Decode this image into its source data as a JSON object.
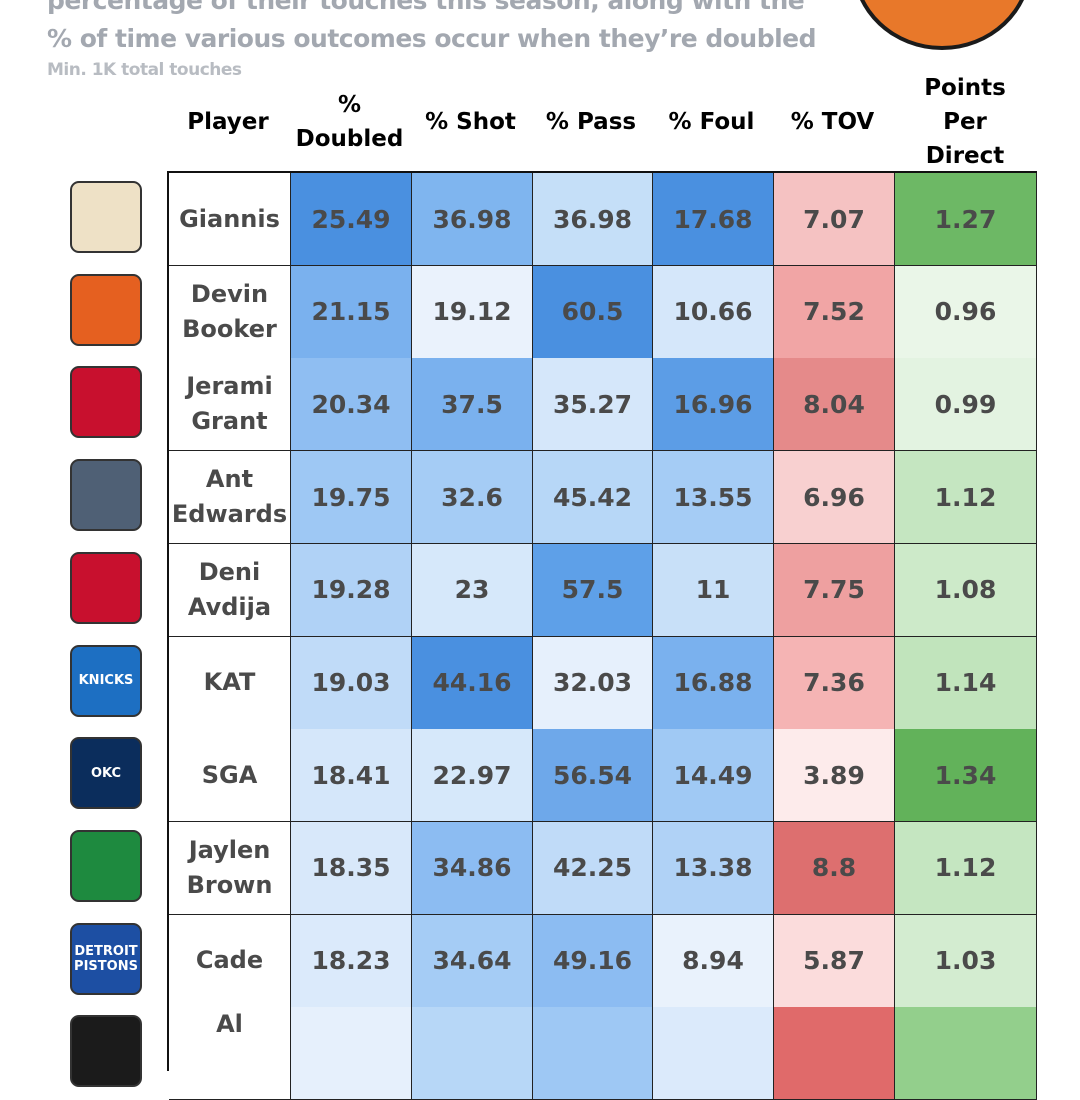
{
  "header": {
    "subtitle_line1": "percentage of their touches this season, along with the",
    "subtitle_line2": "% of time various outcomes occur when they’re doubled",
    "note": "Min. 1K total touches"
  },
  "columns": [
    "Player",
    "% Doubled",
    "% Shot",
    "% Pass",
    "% Foul",
    "% TOV",
    "Points Per Direct"
  ],
  "chart_data": {
    "type": "table",
    "columns": [
      "Player",
      "% Doubled",
      "% Shot",
      "% Pass",
      "% Foul",
      "% TOV",
      "Points Per Direct"
    ],
    "rows": [
      {
        "team": "bucks",
        "logo_color": "#eee1c6",
        "player": "Giannis",
        "values": [
          "25.49",
          "36.98",
          "36.98",
          "17.68",
          "7.07",
          "1.27"
        ],
        "colors": [
          "#4a90e0",
          "#7fb5ef",
          "#c5dff8",
          "#4a90e0",
          "#f5c2c2",
          "#6db865"
        ]
      },
      {
        "team": "suns",
        "logo_color": "#e56020",
        "player": "Devin Booker",
        "values": [
          "21.15",
          "19.12",
          "60.5",
          "10.66",
          "7.52",
          "0.96"
        ],
        "colors": [
          "#7ab1ee",
          "#eaf2fc",
          "#4a90e0",
          "#d5e7fa",
          "#f1a5a5",
          "#eaf6e8"
        ]
      },
      {
        "team": "trail-blazers",
        "logo_color": "#c8102e",
        "player": "Jerami Grant",
        "values": [
          "20.34",
          "37.5",
          "35.27",
          "16.96",
          "8.04",
          "0.99"
        ],
        "colors": [
          "#8fbef2",
          "#7ab1ee",
          "#d5e7fa",
          "#5c9de6",
          "#e58a8a",
          "#e3f3e1"
        ]
      },
      {
        "team": "timberwolves",
        "logo_color": "#4f6075",
        "player": "Ant Edwards",
        "values": [
          "19.75",
          "32.6",
          "45.42",
          "13.55",
          "6.96",
          "1.12"
        ],
        "colors": [
          "#9ec8f4",
          "#a5ccf5",
          "#b7d7f7",
          "#a5ccf5",
          "#f8d0d0",
          "#c5e6c1"
        ]
      },
      {
        "team": "trail-blazers",
        "logo_color": "#c8102e",
        "player": "Deni Avdija",
        "values": [
          "19.28",
          "23",
          "57.5",
          "11",
          "7.75",
          "1.08"
        ],
        "colors": [
          "#b0d2f6",
          "#d6e8fa",
          "#5ea0e8",
          "#c8e0f8",
          "#eea0a0",
          "#cdeac9"
        ]
      },
      {
        "team": "knicks",
        "logo_color": "#1d6fc2",
        "player": "KAT",
        "values": [
          "19.03",
          "44.16",
          "32.03",
          "16.88",
          "7.36",
          "1.14"
        ],
        "colors": [
          "#c0dbf8",
          "#4a90e0",
          "#e6f0fc",
          "#7ab1ee",
          "#f5b4b4",
          "#c1e4bc"
        ]
      },
      {
        "team": "thunder",
        "logo_color": "#0b2d5c",
        "player": "SGA",
        "values": [
          "18.41",
          "22.97",
          "56.54",
          "14.49",
          "3.89",
          "1.34"
        ],
        "colors": [
          "#d5e7fa",
          "#d6e8fa",
          "#6ea8ea",
          "#a0c9f4",
          "#fdebeb",
          "#62b25a"
        ]
      },
      {
        "team": "celtics",
        "logo_color": "#1e8a3f",
        "player": "Jaylen Brown",
        "values": [
          "18.35",
          "34.86",
          "42.25",
          "13.38",
          "8.8",
          "1.12"
        ],
        "colors": [
          "#d8e8fa",
          "#8cbcf2",
          "#c0dbf8",
          "#b0d2f6",
          "#dd6f6f",
          "#c5e6c1"
        ]
      },
      {
        "team": "pistons",
        "logo_color": "#1d4fa3",
        "player": "Cade",
        "values": [
          "18.23",
          "34.64",
          "49.16",
          "8.94",
          "5.87",
          "1.03"
        ],
        "colors": [
          "#dbeafb",
          "#a5ccf5",
          "#8cbcf2",
          "#e9f2fc",
          "#fbdcdc",
          "#d3ecd0"
        ]
      },
      {
        "team": "rockets",
        "logo_color": "#1b1b1b",
        "player": "Al",
        "values": [
          "",
          "",
          "",
          "",
          "",
          ""
        ],
        "colors": [
          "#e6f0fc",
          "#b7d7f7",
          "#9ec8f4",
          "#dbeafb",
          "#e06a6a",
          "#93cf8c"
        ]
      }
    ]
  },
  "logo_text": {
    "pistons": "DETROIT PISTONS",
    "knicks": "KNICKS",
    "thunder": "OKC"
  }
}
